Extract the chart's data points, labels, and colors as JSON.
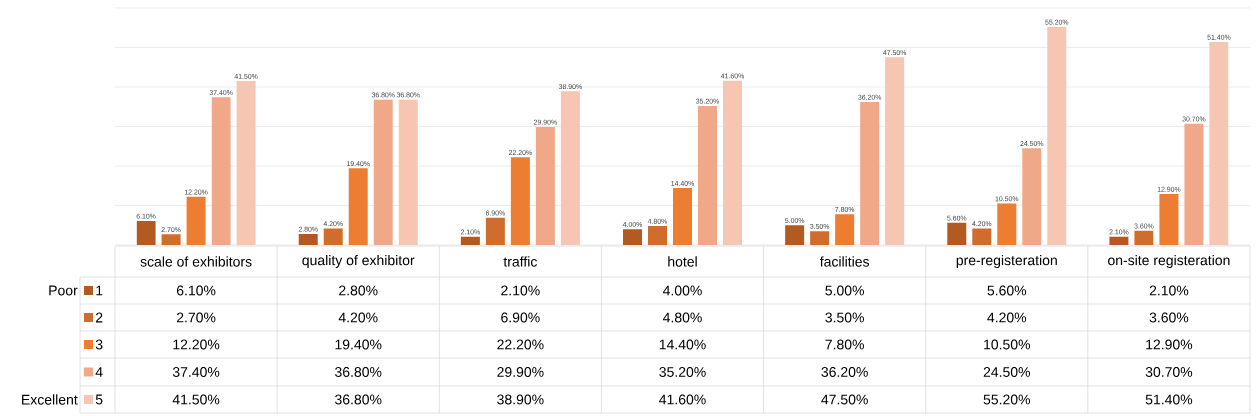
{
  "chart_data": {
    "type": "bar",
    "categories": [
      "scale of exhibitors",
      "quality of exhibitor",
      "traffic",
      "hotel",
      "facilities",
      "pre-registeration",
      "on-site registeration"
    ],
    "series": [
      {
        "name": "1",
        "color": "#b35a22",
        "values": [
          6.1,
          2.8,
          2.1,
          4.0,
          5.0,
          5.6,
          2.1
        ],
        "value_labels": [
          "6.10%",
          "2.80%",
          "2.10%",
          "4.00%",
          "5.00%",
          "5.60%",
          "2.10%"
        ]
      },
      {
        "name": "2",
        "color": "#d06c2c",
        "values": [
          2.7,
          4.2,
          6.9,
          4.8,
          3.5,
          4.2,
          3.6
        ],
        "value_labels": [
          "2.70%",
          "4.20%",
          "6.90%",
          "4.80%",
          "3.50%",
          "4.20%",
          "3.60%"
        ]
      },
      {
        "name": "3",
        "color": "#ed7d31",
        "values": [
          12.2,
          19.4,
          22.2,
          14.4,
          7.8,
          10.5,
          12.9
        ],
        "value_labels": [
          "12.20%",
          "19.40%",
          "22.20%",
          "14.40%",
          "7.80%",
          "10.50%",
          "12.90%"
        ]
      },
      {
        "name": "4",
        "color": "#f0a889",
        "values": [
          37.4,
          36.8,
          29.9,
          35.2,
          36.2,
          24.5,
          30.7
        ],
        "value_labels": [
          "37.40%",
          "36.80%",
          "29.90%",
          "35.20%",
          "36.20%",
          "24.50%",
          "30.70%"
        ]
      },
      {
        "name": "5",
        "color": "#f6c6b2",
        "values": [
          41.5,
          36.8,
          38.9,
          41.6,
          47.5,
          55.2,
          51.4
        ],
        "value_labels": [
          "41.50%",
          "36.80%",
          "38.90%",
          "41.60%",
          "47.50%",
          "55.20%",
          "51.40%"
        ]
      }
    ],
    "ylim": [
      0,
      60
    ],
    "yticks": [
      {
        "value": 0,
        "label": null
      },
      {
        "value": 10,
        "label": null
      },
      {
        "value": 20,
        "label": null
      },
      {
        "value": 30,
        "label": null
      },
      {
        "value": 40,
        "label": null
      },
      {
        "value": 50,
        "label": null
      },
      {
        "value": 60,
        "label": null
      }
    ],
    "grid": "y",
    "legend": "bottom",
    "annotations": [
      "Poor",
      "Excellent"
    ]
  }
}
